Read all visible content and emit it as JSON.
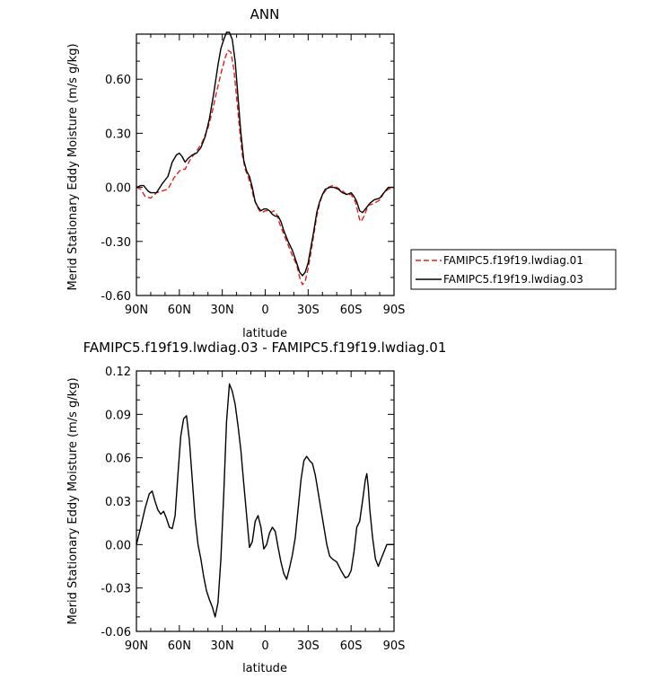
{
  "chart_data": [
    {
      "type": "line",
      "title": "ANN",
      "xlabel": "latitude",
      "ylabel": "Merid Stationary Eddy Moisture (m/s g/kg)",
      "x_ticks": [
        {
          "value": 90,
          "label": "90N"
        },
        {
          "value": 60,
          "label": "60N"
        },
        {
          "value": 30,
          "label": "30N"
        },
        {
          "value": 0,
          "label": "0"
        },
        {
          "value": -30,
          "label": "30S"
        },
        {
          "value": -60,
          "label": "60S"
        },
        {
          "value": -90,
          "label": "90S"
        }
      ],
      "xlim": [
        90,
        -90
      ],
      "y_ticks": [
        {
          "value": 0.6,
          "label": "0.60"
        },
        {
          "value": 0.3,
          "label": "0.30"
        },
        {
          "value": 0.0,
          "label": "0.00"
        },
        {
          "value": -0.3,
          "label": "-0.30"
        },
        {
          "value": -0.6,
          "label": "-0.60"
        }
      ],
      "ylim": [
        -0.6,
        0.85
      ],
      "grid": false,
      "legend_placement": "right",
      "series": [
        {
          "name": "FAMIPC5.f19f19.lwdiag.01",
          "color": "#e0201b",
          "dash": "dashed",
          "points": [
            [
              90,
              0.0
            ],
            [
              87,
              -0.01
            ],
            [
              84,
              -0.05
            ],
            [
              80,
              -0.06
            ],
            [
              76,
              -0.03
            ],
            [
              72,
              -0.02
            ],
            [
              68,
              -0.01
            ],
            [
              64,
              0.05
            ],
            [
              60,
              0.09
            ],
            [
              58,
              0.1
            ],
            [
              56,
              0.1
            ],
            [
              54,
              0.13
            ],
            [
              52,
              0.16
            ],
            [
              48,
              0.2
            ],
            [
              44,
              0.25
            ],
            [
              40,
              0.33
            ],
            [
              37,
              0.42
            ],
            [
              34,
              0.53
            ],
            [
              31,
              0.63
            ],
            [
              28,
              0.72
            ],
            [
              26,
              0.76
            ],
            [
              24,
              0.75
            ],
            [
              22,
              0.66
            ],
            [
              20,
              0.5
            ],
            [
              18,
              0.33
            ],
            [
              16,
              0.18
            ],
            [
              14,
              0.1
            ],
            [
              12,
              0.06
            ],
            [
              10,
              0.01
            ],
            [
              8,
              -0.06
            ],
            [
              6,
              -0.1
            ],
            [
              4,
              -0.13
            ],
            [
              2,
              -0.14
            ],
            [
              0,
              -0.13
            ],
            [
              -2,
              -0.13
            ],
            [
              -4,
              -0.14
            ],
            [
              -6,
              -0.13
            ],
            [
              -8,
              -0.15
            ],
            [
              -10,
              -0.2
            ],
            [
              -13,
              -0.26
            ],
            [
              -16,
              -0.32
            ],
            [
              -19,
              -0.38
            ],
            [
              -22,
              -0.43
            ],
            [
              -24,
              -0.5
            ],
            [
              -26,
              -0.54
            ],
            [
              -28,
              -0.52
            ],
            [
              -30,
              -0.45
            ],
            [
              -32,
              -0.36
            ],
            [
              -34,
              -0.26
            ],
            [
              -36,
              -0.16
            ],
            [
              -38,
              -0.09
            ],
            [
              -40,
              -0.04
            ],
            [
              -42,
              -0.02
            ],
            [
              -44,
              0.0
            ],
            [
              -47,
              0.01
            ],
            [
              -50,
              0.0
            ],
            [
              -54,
              -0.02
            ],
            [
              -57,
              -0.04
            ],
            [
              -60,
              -0.04
            ],
            [
              -63,
              -0.08
            ],
            [
              -66,
              -0.18
            ],
            [
              -67,
              -0.19
            ],
            [
              -69,
              -0.16
            ],
            [
              -72,
              -0.1
            ],
            [
              -76,
              -0.09
            ],
            [
              -80,
              -0.07
            ],
            [
              -83,
              -0.03
            ],
            [
              -86,
              -0.01
            ],
            [
              -90,
              0.0
            ]
          ]
        },
        {
          "name": "FAMIPC5.f19f19.lwdiag.03",
          "color": "#000000",
          "dash": "solid",
          "points": [
            [
              90,
              0.0
            ],
            [
              87,
              0.01
            ],
            [
              85,
              0.01
            ],
            [
              82,
              -0.02
            ],
            [
              80,
              -0.03
            ],
            [
              76,
              -0.03
            ],
            [
              72,
              0.02
            ],
            [
              68,
              0.06
            ],
            [
              65,
              0.14
            ],
            [
              62,
              0.18
            ],
            [
              60,
              0.19
            ],
            [
              58,
              0.17
            ],
            [
              56,
              0.14
            ],
            [
              54,
              0.16
            ],
            [
              51,
              0.18
            ],
            [
              48,
              0.19
            ],
            [
              45,
              0.22
            ],
            [
              42,
              0.28
            ],
            [
              39,
              0.38
            ],
            [
              36,
              0.52
            ],
            [
              33,
              0.68
            ],
            [
              31,
              0.77
            ],
            [
              29,
              0.82
            ],
            [
              27,
              0.86
            ],
            [
              25,
              0.86
            ],
            [
              23,
              0.82
            ],
            [
              21,
              0.7
            ],
            [
              19,
              0.5
            ],
            [
              17,
              0.3
            ],
            [
              15,
              0.15
            ],
            [
              13,
              0.09
            ],
            [
              11,
              0.06
            ],
            [
              9,
              0.0
            ],
            [
              7,
              -0.08
            ],
            [
              5,
              -0.11
            ],
            [
              3,
              -0.13
            ],
            [
              1,
              -0.12
            ],
            [
              -1,
              -0.12
            ],
            [
              -3,
              -0.13
            ],
            [
              -5,
              -0.15
            ],
            [
              -7,
              -0.16
            ],
            [
              -9,
              -0.16
            ],
            [
              -11,
              -0.19
            ],
            [
              -13,
              -0.24
            ],
            [
              -16,
              -0.3
            ],
            [
              -19,
              -0.35
            ],
            [
              -22,
              -0.42
            ],
            [
              -24,
              -0.47
            ],
            [
              -26,
              -0.49
            ],
            [
              -28,
              -0.47
            ],
            [
              -30,
              -0.42
            ],
            [
              -32,
              -0.33
            ],
            [
              -34,
              -0.24
            ],
            [
              -36,
              -0.14
            ],
            [
              -38,
              -0.08
            ],
            [
              -40,
              -0.04
            ],
            [
              -42,
              -0.01
            ],
            [
              -45,
              0.0
            ],
            [
              -48,
              0.0
            ],
            [
              -51,
              -0.01
            ],
            [
              -54,
              -0.03
            ],
            [
              -57,
              -0.04
            ],
            [
              -60,
              -0.03
            ],
            [
              -62,
              -0.05
            ],
            [
              -64,
              -0.08
            ],
            [
              -66,
              -0.13
            ],
            [
              -68,
              -0.14
            ],
            [
              -70,
              -0.12
            ],
            [
              -73,
              -0.09
            ],
            [
              -76,
              -0.07
            ],
            [
              -80,
              -0.06
            ],
            [
              -83,
              -0.03
            ],
            [
              -86,
              0.0
            ],
            [
              -90,
              0.0
            ]
          ]
        }
      ]
    },
    {
      "type": "line",
      "title": "FAMIPC5.f19f19.lwdiag.03 - FAMIPC5.f19f19.lwdiag.01",
      "xlabel": "latitude",
      "ylabel": "Merid Stationary Eddy Moisture (m/s g/kg)",
      "x_ticks": [
        {
          "value": 90,
          "label": "90N"
        },
        {
          "value": 60,
          "label": "60N"
        },
        {
          "value": 30,
          "label": "30N"
        },
        {
          "value": 0,
          "label": "0"
        },
        {
          "value": -30,
          "label": "30S"
        },
        {
          "value": -60,
          "label": "60S"
        },
        {
          "value": -90,
          "label": "90S"
        }
      ],
      "xlim": [
        90,
        -90
      ],
      "y_ticks": [
        {
          "value": 0.12,
          "label": "0.12"
        },
        {
          "value": 0.09,
          "label": "0.09"
        },
        {
          "value": 0.06,
          "label": "0.06"
        },
        {
          "value": 0.03,
          "label": "0.03"
        },
        {
          "value": 0.0,
          "label": "0.00"
        },
        {
          "value": -0.03,
          "label": "-0.03"
        },
        {
          "value": -0.06,
          "label": "-0.06"
        }
      ],
      "ylim": [
        -0.06,
        0.12
      ],
      "grid": false,
      "series": [
        {
          "color": "#000000",
          "dash": "solid",
          "points": [
            [
              90,
              0.0
            ],
            [
              87,
              0.012
            ],
            [
              84,
              0.025
            ],
            [
              81,
              0.035
            ],
            [
              79,
              0.037
            ],
            [
              77,
              0.03
            ],
            [
              75,
              0.024
            ],
            [
              73,
              0.021
            ],
            [
              71,
              0.023
            ],
            [
              69,
              0.018
            ],
            [
              67,
              0.012
            ],
            [
              65,
              0.011
            ],
            [
              63,
              0.02
            ],
            [
              61,
              0.048
            ],
            [
              59,
              0.075
            ],
            [
              57,
              0.087
            ],
            [
              55,
              0.089
            ],
            [
              53,
              0.072
            ],
            [
              51,
              0.045
            ],
            [
              49,
              0.018
            ],
            [
              47,
              0.0
            ],
            [
              45,
              -0.01
            ],
            [
              43,
              -0.022
            ],
            [
              41,
              -0.032
            ],
            [
              39,
              -0.038
            ],
            [
              37,
              -0.043
            ],
            [
              35,
              -0.05
            ],
            [
              33,
              -0.04
            ],
            [
              31,
              -0.01
            ],
            [
              29,
              0.035
            ],
            [
              27,
              0.085
            ],
            [
              25,
              0.111
            ],
            [
              23,
              0.106
            ],
            [
              21,
              0.097
            ],
            [
              19,
              0.082
            ],
            [
              17,
              0.065
            ],
            [
              15,
              0.042
            ],
            [
              13,
              0.02
            ],
            [
              11,
              -0.002
            ],
            [
              9,
              0.002
            ],
            [
              7,
              0.016
            ],
            [
              5,
              0.02
            ],
            [
              3,
              0.012
            ],
            [
              1,
              -0.003
            ],
            [
              -1,
              0.0
            ],
            [
              -3,
              0.008
            ],
            [
              -5,
              0.012
            ],
            [
              -7,
              0.009
            ],
            [
              -9,
              -0.002
            ],
            [
              -11,
              -0.012
            ],
            [
              -13,
              -0.02
            ],
            [
              -15,
              -0.024
            ],
            [
              -17,
              -0.016
            ],
            [
              -19,
              -0.007
            ],
            [
              -21,
              0.005
            ],
            [
              -23,
              0.025
            ],
            [
              -25,
              0.045
            ],
            [
              -27,
              0.058
            ],
            [
              -29,
              0.061
            ],
            [
              -31,
              0.058
            ],
            [
              -33,
              0.056
            ],
            [
              -35,
              0.048
            ],
            [
              -37,
              0.036
            ],
            [
              -39,
              0.024
            ],
            [
              -41,
              0.012
            ],
            [
              -43,
              0.0
            ],
            [
              -45,
              -0.008
            ],
            [
              -47,
              -0.01
            ],
            [
              -50,
              -0.012
            ],
            [
              -53,
              -0.018
            ],
            [
              -56,
              -0.023
            ],
            [
              -58,
              -0.022
            ],
            [
              -60,
              -0.018
            ],
            [
              -62,
              -0.005
            ],
            [
              -64,
              0.012
            ],
            [
              -66,
              0.016
            ],
            [
              -68,
              0.03
            ],
            [
              -70,
              0.045
            ],
            [
              -71,
              0.049
            ],
            [
              -72,
              0.04
            ],
            [
              -73,
              0.025
            ],
            [
              -75,
              0.005
            ],
            [
              -77,
              -0.01
            ],
            [
              -79,
              -0.015
            ],
            [
              -81,
              -0.01
            ],
            [
              -83,
              -0.005
            ],
            [
              -85,
              0.0
            ],
            [
              -88,
              0.0
            ],
            [
              -90,
              0.0
            ]
          ]
        }
      ]
    }
  ]
}
